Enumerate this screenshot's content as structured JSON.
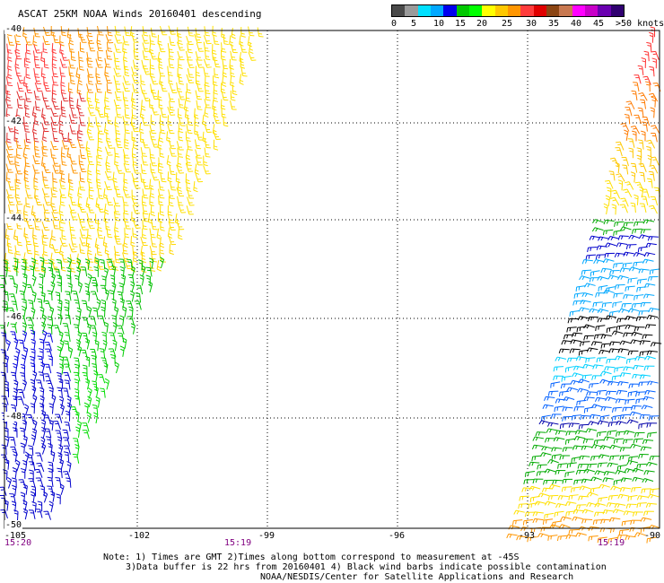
{
  "title": "ASCAT 25KM NOAA Winds 20160401 descending",
  "colorbar": {
    "colors": [
      "#4a4a4a",
      "#9a9a9a",
      "#00e0ff",
      "#00a8ff",
      "#0000ee",
      "#00c800",
      "#00ff00",
      "#ffff00",
      "#ffc800",
      "#ff9600",
      "#ff3c3c",
      "#e00000",
      "#8b4513",
      "#c87850",
      "#ff00ff",
      "#c800c8",
      "#6a00b0",
      "#300070"
    ],
    "labels": [
      "0",
      "5",
      "10",
      "15",
      "20",
      "25",
      "30",
      "35",
      "40",
      "45",
      ">50 knots"
    ]
  },
  "axes": {
    "x_ticks": [
      "-105",
      "-102",
      "-99",
      "-96",
      "-93",
      "-90"
    ],
    "y_ticks": [
      "-40",
      "-42",
      "-44",
      "-46",
      "-48",
      "-50"
    ]
  },
  "times": [
    "15:20",
    "15:19",
    "15:19"
  ],
  "notes": [
    "Note: 1) Times are GMT 2)Times along bottom correspond to measurement at -45S",
    "3)Data buffer is 22 hrs from 20160401 4) Black wind barbs indicate possible contamination",
    "NOAA/NESDIS/Center for Satellite Applications and Research"
  ]
}
